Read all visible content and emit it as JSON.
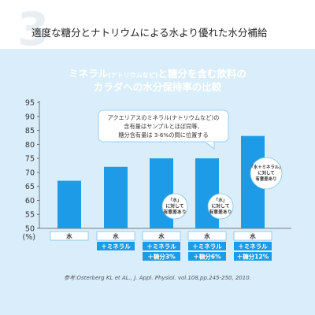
{
  "section_number": "3",
  "headline": "適度な糖分とナトリウムによる水より優れた水分補給",
  "chart_data": {
    "type": "bar",
    "title_line1_main": "ミネラル",
    "title_line1_small": "(ナトリウムなど)",
    "title_line1_rest": "と糖分を含む飲料の",
    "title_line2": "カラダへの水分保持率の比較",
    "yunit": "(%)",
    "ylim": [
      50,
      95
    ],
    "yticks": [
      50,
      55,
      60,
      65,
      70,
      75,
      80,
      85,
      90,
      95
    ],
    "values": [
      67,
      72,
      75,
      75,
      83
    ],
    "categories": [
      [
        "水"
      ],
      [
        "水",
        "＋ミネラル"
      ],
      [
        "水",
        "＋ミネラル",
        "＋糖分3%"
      ],
      [
        "水",
        "＋ミネラル",
        "＋糖分6%"
      ],
      [
        "水",
        "＋ミネラル",
        "＋糖分12%"
      ]
    ],
    "callout": [
      "アクエリアスのミネラル(ナトリウムなど)の",
      "含有量はサンプルとほぼ同等、",
      "糖分含有量は 3-6%の間に位置する"
    ],
    "annotations": [
      {
        "bar": 2,
        "lines": [
          "「水」",
          "に対して",
          "有意差あり"
        ]
      },
      {
        "bar": 3,
        "lines": [
          "「水」",
          "に対して",
          "有意差あり"
        ]
      },
      {
        "bar": 4,
        "lines": [
          "「水＋ミネラル」",
          "に対して",
          "有意差あり"
        ]
      }
    ],
    "grid": false,
    "bar_color": "#1e9be6"
  },
  "source": "参考:Osterberg KL et AL., J. Appl. Physiol. vol.108,pp.245-250, 2010."
}
